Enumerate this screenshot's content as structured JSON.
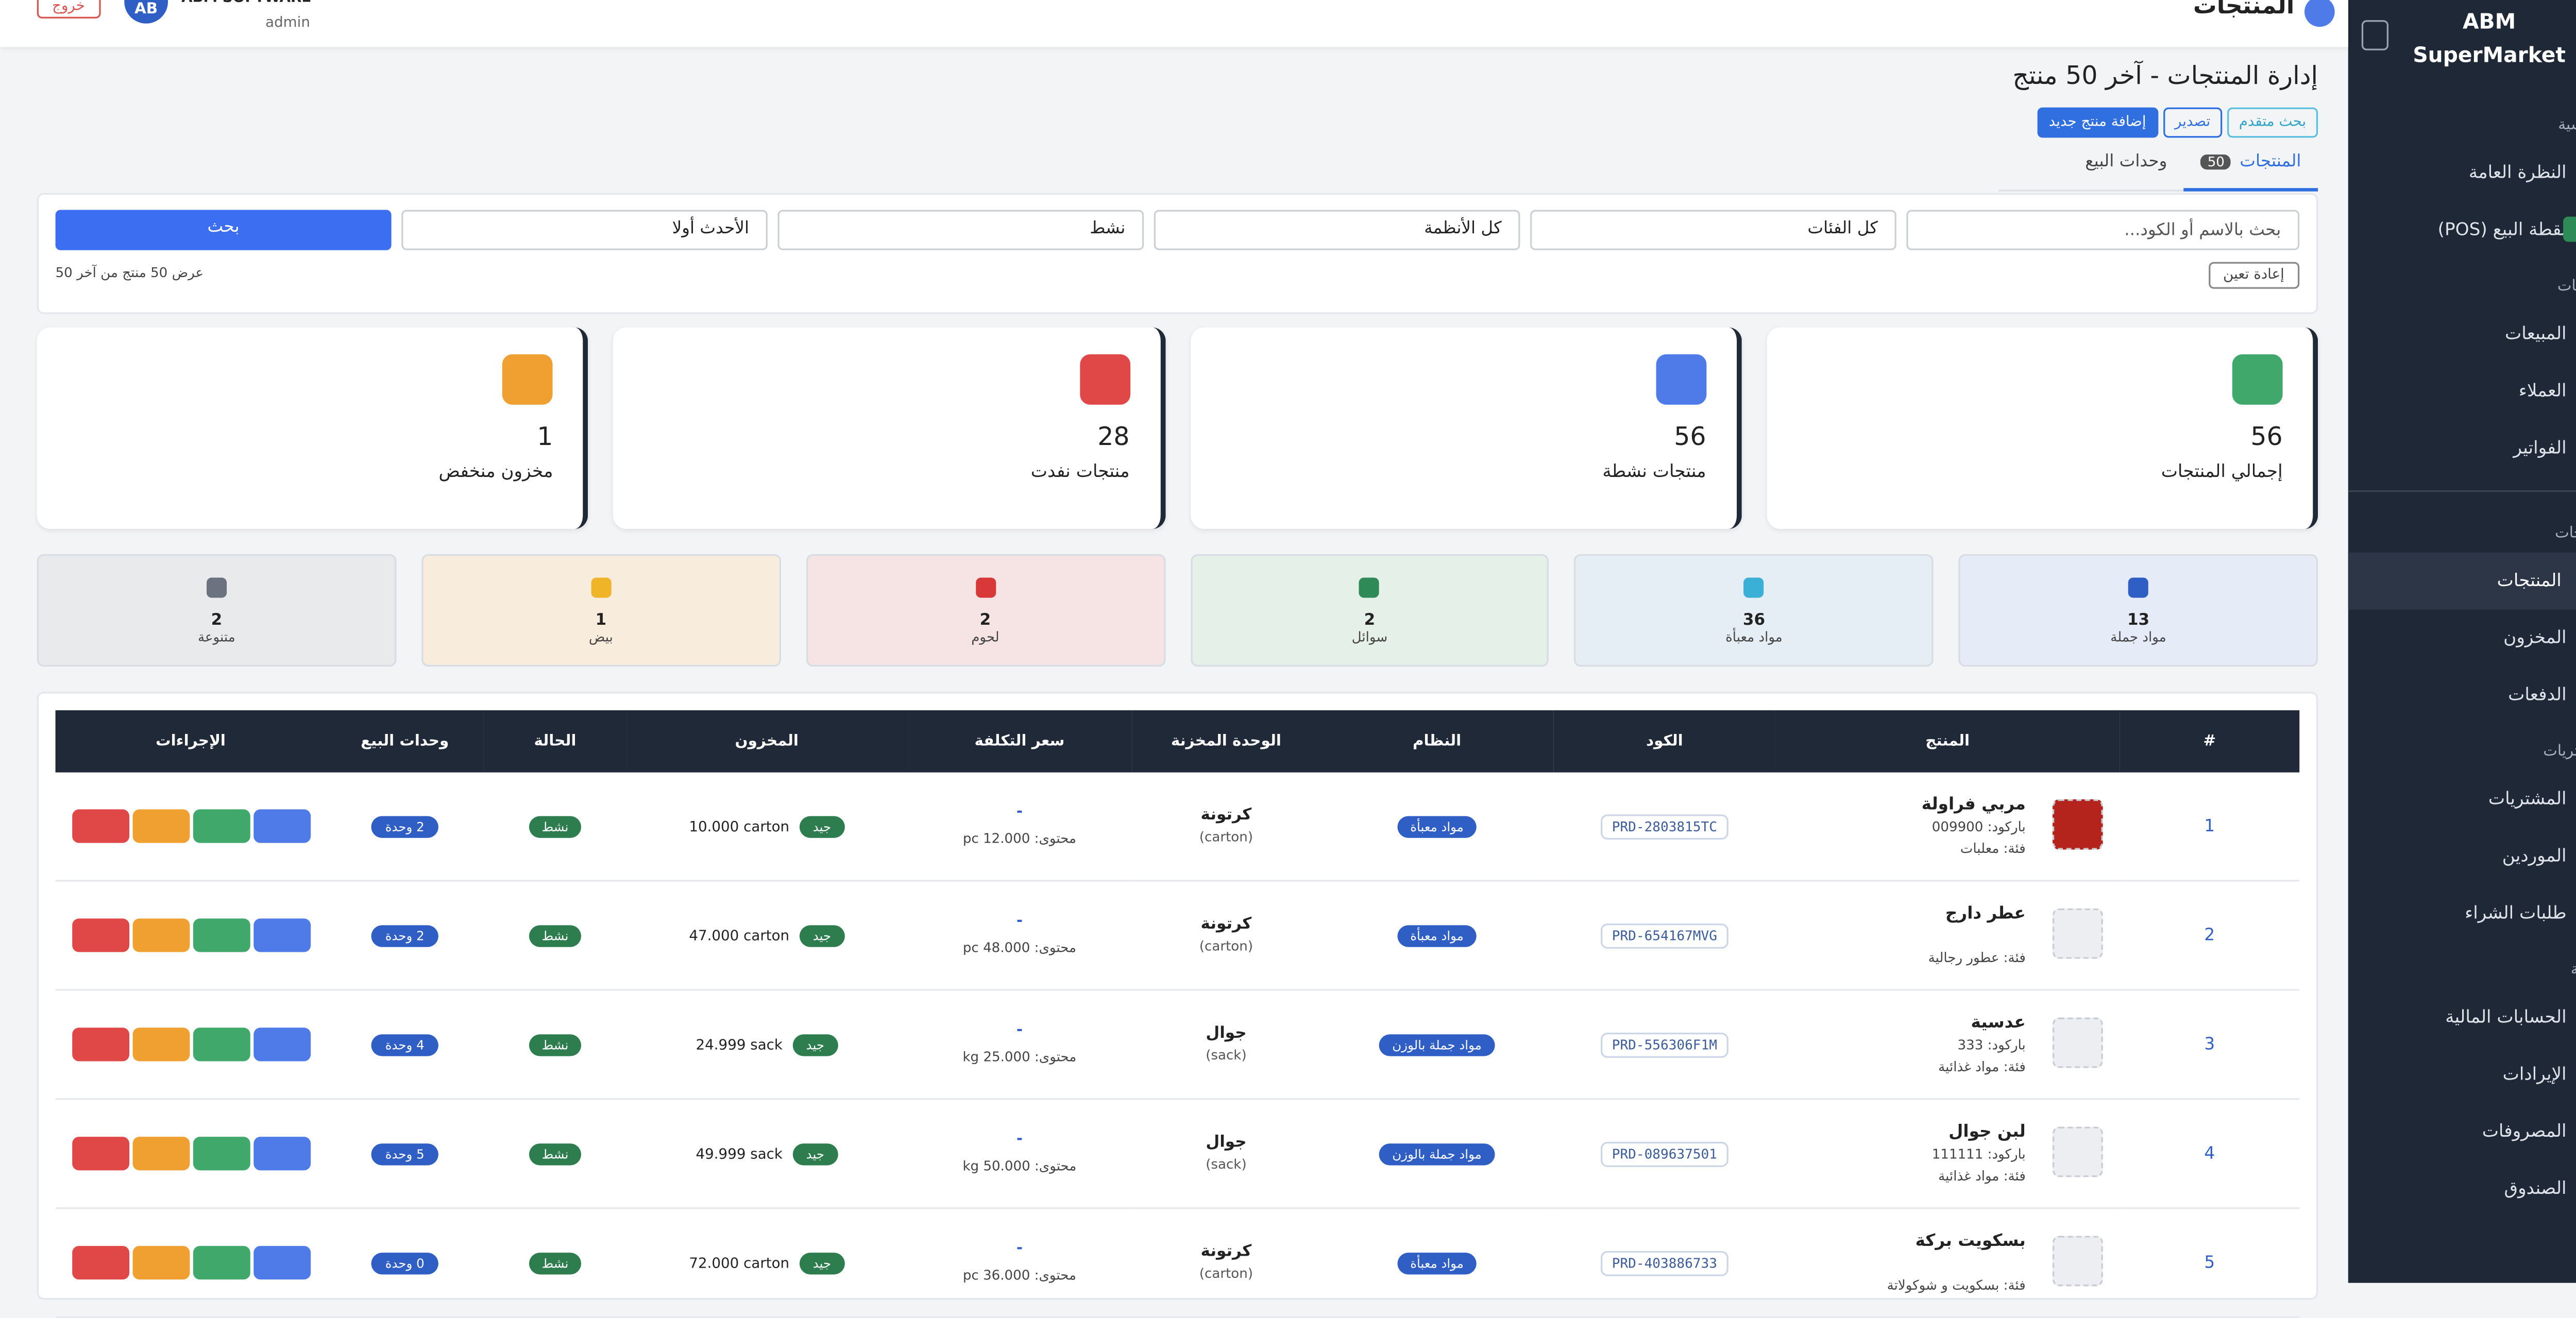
{
  "sidebar": {
    "brand": "ABM SuperMarket",
    "sections": [
      {
        "title": "الرئيسية",
        "items": [
          "النظرة العامة",
          "نقطة البيع (POS)"
        ]
      },
      {
        "title": "المبيعات",
        "items": [
          "المبيعات",
          "العملاء",
          "الفواتير"
        ]
      },
      {
        "title": "المنتجات",
        "items": [
          "المنتجات",
          "المخزون",
          "الدفعات"
        ]
      },
      {
        "title": "المشتريات",
        "items": [
          "المشتريات",
          "الموردين",
          "طلبات الشراء"
        ]
      },
      {
        "title": "المالية",
        "items": [
          "الحسابات المالية",
          "الإيرادات",
          "المصروفات",
          "الصندوق"
        ]
      }
    ]
  },
  "topbar": {
    "title": "المنتجات",
    "initials": "AB",
    "user": "ABM SOFTWARE",
    "role": "admin",
    "logout": "خروج"
  },
  "header": {
    "title": "إدارة المنتجات - آخر 50 منتج",
    "buttons": [
      "بحث متقدم",
      "تصدير",
      "إضافة منتج جديد"
    ]
  },
  "tabs": [
    {
      "label": "المنتجات",
      "badge": "50"
    },
    {
      "label": "وحدات البيع"
    }
  ],
  "filters": {
    "placeholder": "بحث بالاسم أو الكود...",
    "selects": [
      "كل الفئات",
      "كل الأنظمة",
      "نشط",
      "الأحدث أولا"
    ],
    "search": "بحث",
    "reset": "إعادة تعين",
    "info": "عرض 50 منتج من آخر 50"
  },
  "stats": [
    {
      "value": 56,
      "label": "إجمالي المنتجات"
    },
    {
      "value": 56,
      "label": "منتجات نشطة"
    },
    {
      "value": 28,
      "label": "منتجات نفدت"
    },
    {
      "value": 1,
      "label": "مخزون منخفض"
    }
  ],
  "categories": [
    {
      "count": 13,
      "label": "مواد جملة"
    },
    {
      "count": 36,
      "label": "مواد معبأة"
    },
    {
      "count": 2,
      "label": "سوائل"
    },
    {
      "count": 2,
      "label": "لحوم"
    },
    {
      "count": 1,
      "label": "بيض"
    },
    {
      "count": 2,
      "label": "متنوعة"
    }
  ],
  "table": {
    "columns": [
      "#",
      "المنتج",
      "الكود",
      "النظام",
      "الوحدة المخزنة",
      "سعر التكلفة",
      "المخزون",
      "الحالة",
      "وحدات البيع",
      "الإجراءات"
    ],
    "rows": [
      {
        "num": 1,
        "name": "مربي فراولة",
        "barcode": "باركود: 009900",
        "category": "فئة: معلبات",
        "code": "PRD-2803815TC",
        "system": "مواد معبأة",
        "unit": "كرتونة",
        "unit_sub": "(carton)",
        "cost": "-",
        "content": "محتوى: 12.000 pc",
        "stock_badge": "جيد",
        "stock": "10.000 carton",
        "status": "نشط",
        "sale_units": "2 وحدة"
      },
      {
        "num": 2,
        "name": "عطر دارج",
        "category": "فئة: عطور رجالية",
        "code": "PRD-654167MVG",
        "system": "مواد معبأة",
        "unit": "كرتونة",
        "unit_sub": "(carton)",
        "cost": "-",
        "content": "محتوى: 48.000 pc",
        "stock_badge": "جيد",
        "stock": "47.000 carton",
        "status": "نشط",
        "sale_units": "2 وحدة"
      },
      {
        "num": 3,
        "name": "عدسية",
        "barcode": "باركود: 333",
        "category": "فئة: مواد غذائية",
        "code": "PRD-556306F1M",
        "system": "مواد جملة بالوزن",
        "unit": "جوال",
        "unit_sub": "(sack)",
        "cost": "-",
        "content": "محتوى: 25.000 kg",
        "stock_badge": "جيد",
        "stock": "24.999 sack",
        "status": "نشط",
        "sale_units": "4 وحدة"
      },
      {
        "num": 4,
        "name": "لبن جوال",
        "barcode": "باركود: 111111",
        "category": "فئة: مواد غذائية",
        "code": "PRD-089637501",
        "system": "مواد جملة بالوزن",
        "unit": "جوال",
        "unit_sub": "(sack)",
        "cost": "-",
        "content": "محتوى: 50.000 kg",
        "stock_badge": "جيد",
        "stock": "49.999 sack",
        "status": "نشط",
        "sale_units": "5 وحدة"
      },
      {
        "num": 5,
        "name": "بسكويت بركة",
        "category": "فئة: بسكويت و شوكولاتة",
        "code": "PRD-403886733",
        "system": "مواد معبأة",
        "unit": "كرتونة",
        "unit_sub": "(carton)",
        "cost": "-",
        "content": "محتوى: 36.000 pc",
        "stock_badge": "جيد",
        "stock": "72.000 carton",
        "status": "نشط",
        "sale_units": "0 وحدة"
      }
    ]
  }
}
